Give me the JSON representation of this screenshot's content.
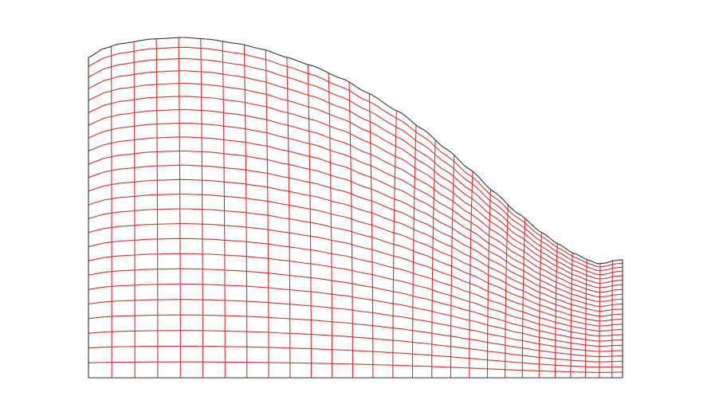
{
  "diagram": {
    "type": "structured-mesh",
    "shape": "curved-top-domain",
    "grid": {
      "columns": 28,
      "rows": 24
    },
    "colors": {
      "mesh": "#cc3333",
      "boundary": "#333333",
      "background": "#ffffff"
    }
  }
}
